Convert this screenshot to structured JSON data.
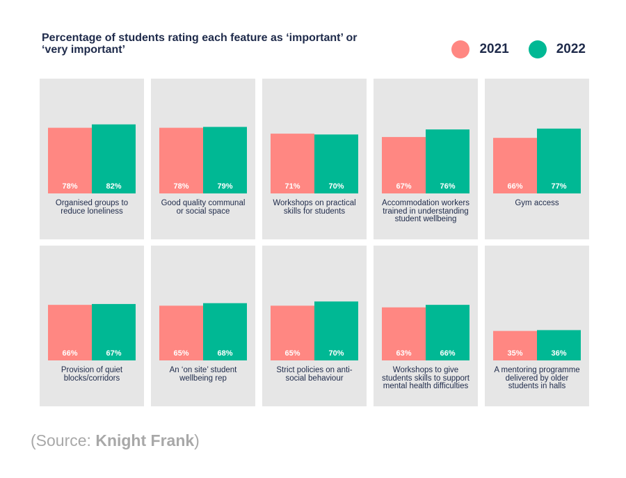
{
  "chart_data": {
    "type": "bar",
    "title": "Percentage of students rating each feature as ‘important’ or ‘very important’",
    "ylim": [
      0,
      100
    ],
    "legend_position": "top-right",
    "series": [
      {
        "name": "2021",
        "color": "#ff8782",
        "values": [
          78,
          78,
          71,
          67,
          66,
          66,
          65,
          65,
          63,
          35
        ]
      },
      {
        "name": "2022",
        "color": "#00b894",
        "values": [
          82,
          79,
          70,
          76,
          77,
          67,
          68,
          70,
          66,
          36
        ]
      }
    ],
    "categories": [
      "Organised groups to reduce loneliness",
      "Good quality communal or social space",
      "Workshops on practical skills for students",
      "Accommodation workers trained in understanding student wellbeing",
      "Gym access",
      "Provision of quiet blocks/corridors",
      "An ‘on site’ student wellbeing rep",
      "Strict policies on anti-social behaviour",
      "Workshops to give students skills to support mental health difficulties",
      "A mentoring programme delivered by older students in halls"
    ],
    "value_suffix": "%"
  },
  "source": {
    "prefix": "Source: ",
    "name": "Knight Frank"
  }
}
